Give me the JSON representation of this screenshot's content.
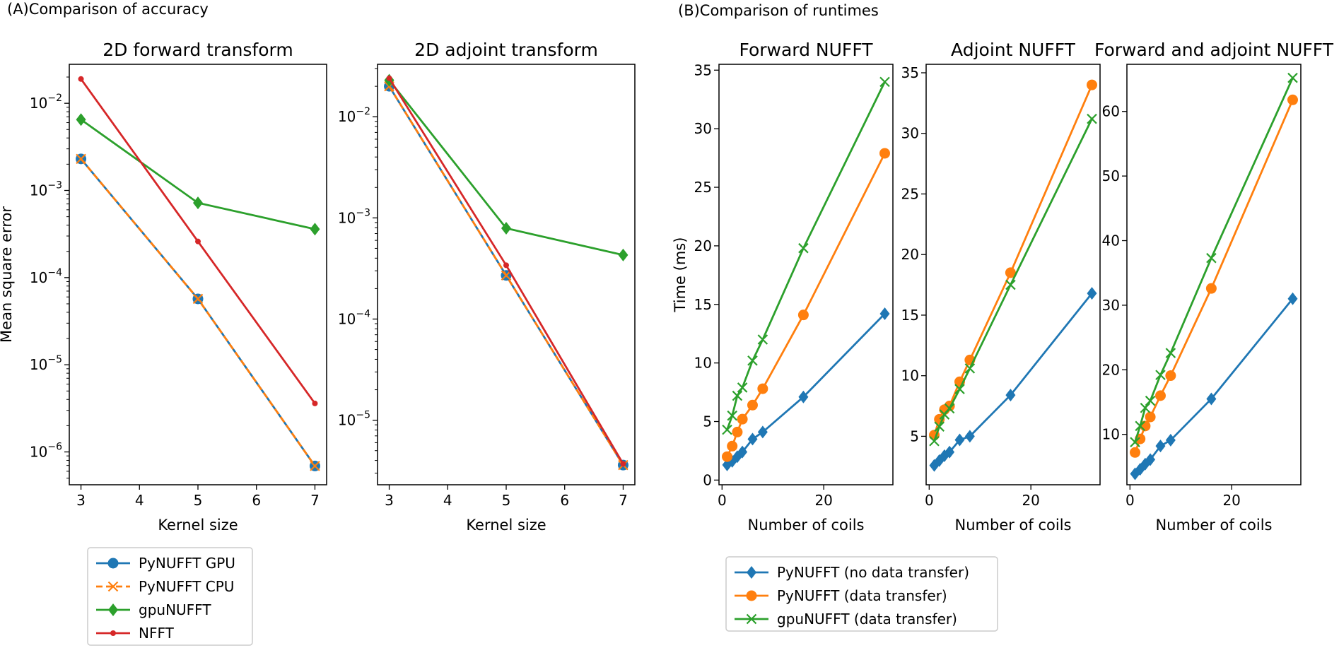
{
  "panel_titles": {
    "accuracy": "(A)Comparison of accuracy",
    "runtimes": "(B)Comparison of runtimes"
  },
  "colors": {
    "blue": "#1f77b4",
    "orange": "#ff7f0e",
    "green": "#2ca02c",
    "red": "#d62728"
  },
  "legends": {
    "accuracy": [
      "PyNUFFT GPU",
      "PyNUFFT CPU",
      "gpuNUFFT",
      "NFFT"
    ],
    "runtimes": [
      "PyNUFFT (no data transfer)",
      "PyNUFFT (data transfer)",
      "gpuNUFFT (data transfer)"
    ]
  },
  "chart_data": [
    {
      "type": "line",
      "title": "2D forward transform",
      "xlabel": "Kernel size",
      "ylabel": "Mean square error",
      "yscale": "log",
      "xlim": [
        2.8,
        7.2
      ],
      "ylim": [
        4.2e-07,
        0.028
      ],
      "xticks": [
        3,
        4,
        5,
        6,
        7
      ],
      "yticks": [
        1e-06,
        1e-05,
        0.0001,
        0.001,
        0.01
      ],
      "ytick_labels": [
        "10",
        "10",
        "10",
        "10",
        "10"
      ],
      "ytick_exps": [
        "−6",
        "−5",
        "−4",
        "−3",
        "−2"
      ],
      "x": [
        3,
        5,
        7
      ],
      "series": [
        {
          "name": "PyNUFFT GPU",
          "color": "#1f77b4",
          "marker": "circle",
          "values": [
            0.0023,
            5.7e-05,
            6.9e-07
          ]
        },
        {
          "name": "PyNUFFT CPU",
          "color": "#ff7f0e",
          "marker": "x",
          "dashed": true,
          "values": [
            0.0023,
            5.7e-05,
            6.9e-07
          ]
        },
        {
          "name": "gpuNUFFT",
          "color": "#2ca02c",
          "marker": "diamond",
          "values": [
            0.0065,
            0.00072,
            0.00036
          ]
        },
        {
          "name": "NFFT",
          "color": "#d62728",
          "marker": "dot",
          "values": [
            0.019,
            0.00026,
            3.6e-06
          ]
        }
      ]
    },
    {
      "type": "line",
      "title": "2D adjoint transform",
      "xlabel": "Kernel size",
      "ylabel": "",
      "yscale": "log",
      "xlim": [
        2.8,
        7.2
      ],
      "ylim": [
        2.3e-06,
        0.033
      ],
      "xticks": [
        3,
        4,
        5,
        6,
        7
      ],
      "yticks": [
        1e-05,
        0.0001,
        0.001,
        0.01
      ],
      "ytick_labels": [
        "10",
        "10",
        "10",
        "10"
      ],
      "ytick_exps": [
        "−5",
        "−4",
        "−3",
        "−2"
      ],
      "x": [
        3,
        5,
        7
      ],
      "series": [
        {
          "name": "PyNUFFT GPU",
          "color": "#1f77b4",
          "marker": "circle",
          "values": [
            0.02,
            0.00027,
            3.6e-06
          ]
        },
        {
          "name": "PyNUFFT CPU",
          "color": "#ff7f0e",
          "marker": "x",
          "dashed": true,
          "values": [
            0.02,
            0.00027,
            3.6e-06
          ]
        },
        {
          "name": "gpuNUFFT",
          "color": "#2ca02c",
          "marker": "diamond",
          "values": [
            0.023,
            0.00079,
            0.00043
          ]
        },
        {
          "name": "NFFT",
          "color": "#d62728",
          "marker": "dot",
          "values": [
            0.024,
            0.00034,
            3.7e-06
          ]
        }
      ]
    },
    {
      "type": "line",
      "title": "Forward NUFFT",
      "xlabel": "Number of coils",
      "ylabel": "Time (ms)",
      "yscale": "linear",
      "xlim": [
        -0.6,
        33.6
      ],
      "ylim": [
        -0.4,
        35.5
      ],
      "xticks": [
        0,
        20
      ],
      "yticks": [
        0,
        5,
        10,
        15,
        20,
        25,
        30,
        35
      ],
      "x": [
        1,
        2,
        3,
        4,
        6,
        8,
        16,
        32
      ],
      "series": [
        {
          "name": "PyNUFFT (no data transfer)",
          "color": "#1f77b4",
          "marker": "diamond",
          "values": [
            1.3,
            1.6,
            2.0,
            2.4,
            3.5,
            4.1,
            7.1,
            14.2
          ]
        },
        {
          "name": "PyNUFFT (data transfer)",
          "color": "#ff7f0e",
          "marker": "circle",
          "values": [
            2.0,
            2.9,
            4.1,
            5.2,
            6.4,
            7.8,
            14.1,
            27.9
          ]
        },
        {
          "name": "gpuNUFFT (data transfer)",
          "color": "#2ca02c",
          "marker": "x",
          "values": [
            4.3,
            5.5,
            7.2,
            7.9,
            10.2,
            12.0,
            19.8,
            34.0
          ]
        }
      ]
    },
    {
      "type": "line",
      "title": "Adjoint NUFFT",
      "xlabel": "Number of coils",
      "ylabel": "",
      "yscale": "linear",
      "xlim": [
        -0.6,
        33.6
      ],
      "ylim": [
        1.0,
        35.7
      ],
      "xticks": [
        0,
        20
      ],
      "yticks": [
        5,
        10,
        15,
        20,
        25,
        30,
        35
      ],
      "x": [
        1,
        2,
        3,
        4,
        6,
        8,
        16,
        32
      ],
      "series": [
        {
          "name": "PyNUFFT (no data transfer)",
          "color": "#1f77b4",
          "marker": "diamond",
          "values": [
            2.6,
            3.0,
            3.4,
            3.7,
            4.7,
            5.0,
            8.4,
            16.8
          ]
        },
        {
          "name": "PyNUFFT (data transfer)",
          "color": "#ff7f0e",
          "marker": "circle",
          "values": [
            5.1,
            6.4,
            7.2,
            7.5,
            9.5,
            11.3,
            18.5,
            34.0
          ]
        },
        {
          "name": "gpuNUFFT (data transfer)",
          "color": "#2ca02c",
          "marker": "x",
          "values": [
            4.6,
            5.8,
            6.8,
            7.3,
            8.9,
            10.6,
            17.5,
            31.2
          ]
        }
      ]
    },
    {
      "type": "line",
      "title": "Forward and adjoint NUFFT",
      "xlabel": "Number of coils",
      "ylabel": "",
      "yscale": "linear",
      "xlim": [
        -0.6,
        33.6
      ],
      "ylim": [
        2.2,
        67.3
      ],
      "xticks": [
        0,
        20
      ],
      "yticks": [
        10,
        20,
        30,
        40,
        50,
        60
      ],
      "x": [
        1,
        2,
        3,
        4,
        6,
        8,
        16,
        32
      ],
      "series": [
        {
          "name": "PyNUFFT (no data transfer)",
          "color": "#1f77b4",
          "marker": "diamond",
          "values": [
            3.9,
            4.6,
            5.4,
            6.1,
            8.2,
            9.1,
            15.5,
            31.0
          ]
        },
        {
          "name": "PyNUFFT (data transfer)",
          "color": "#ff7f0e",
          "marker": "circle",
          "values": [
            7.2,
            9.3,
            11.3,
            12.7,
            16.0,
            19.1,
            32.6,
            61.8
          ]
        },
        {
          "name": "gpuNUFFT (data transfer)",
          "color": "#2ca02c",
          "marker": "x",
          "values": [
            8.8,
            11.3,
            14.1,
            15.2,
            19.2,
            22.6,
            37.3,
            65.2
          ]
        }
      ]
    }
  ]
}
